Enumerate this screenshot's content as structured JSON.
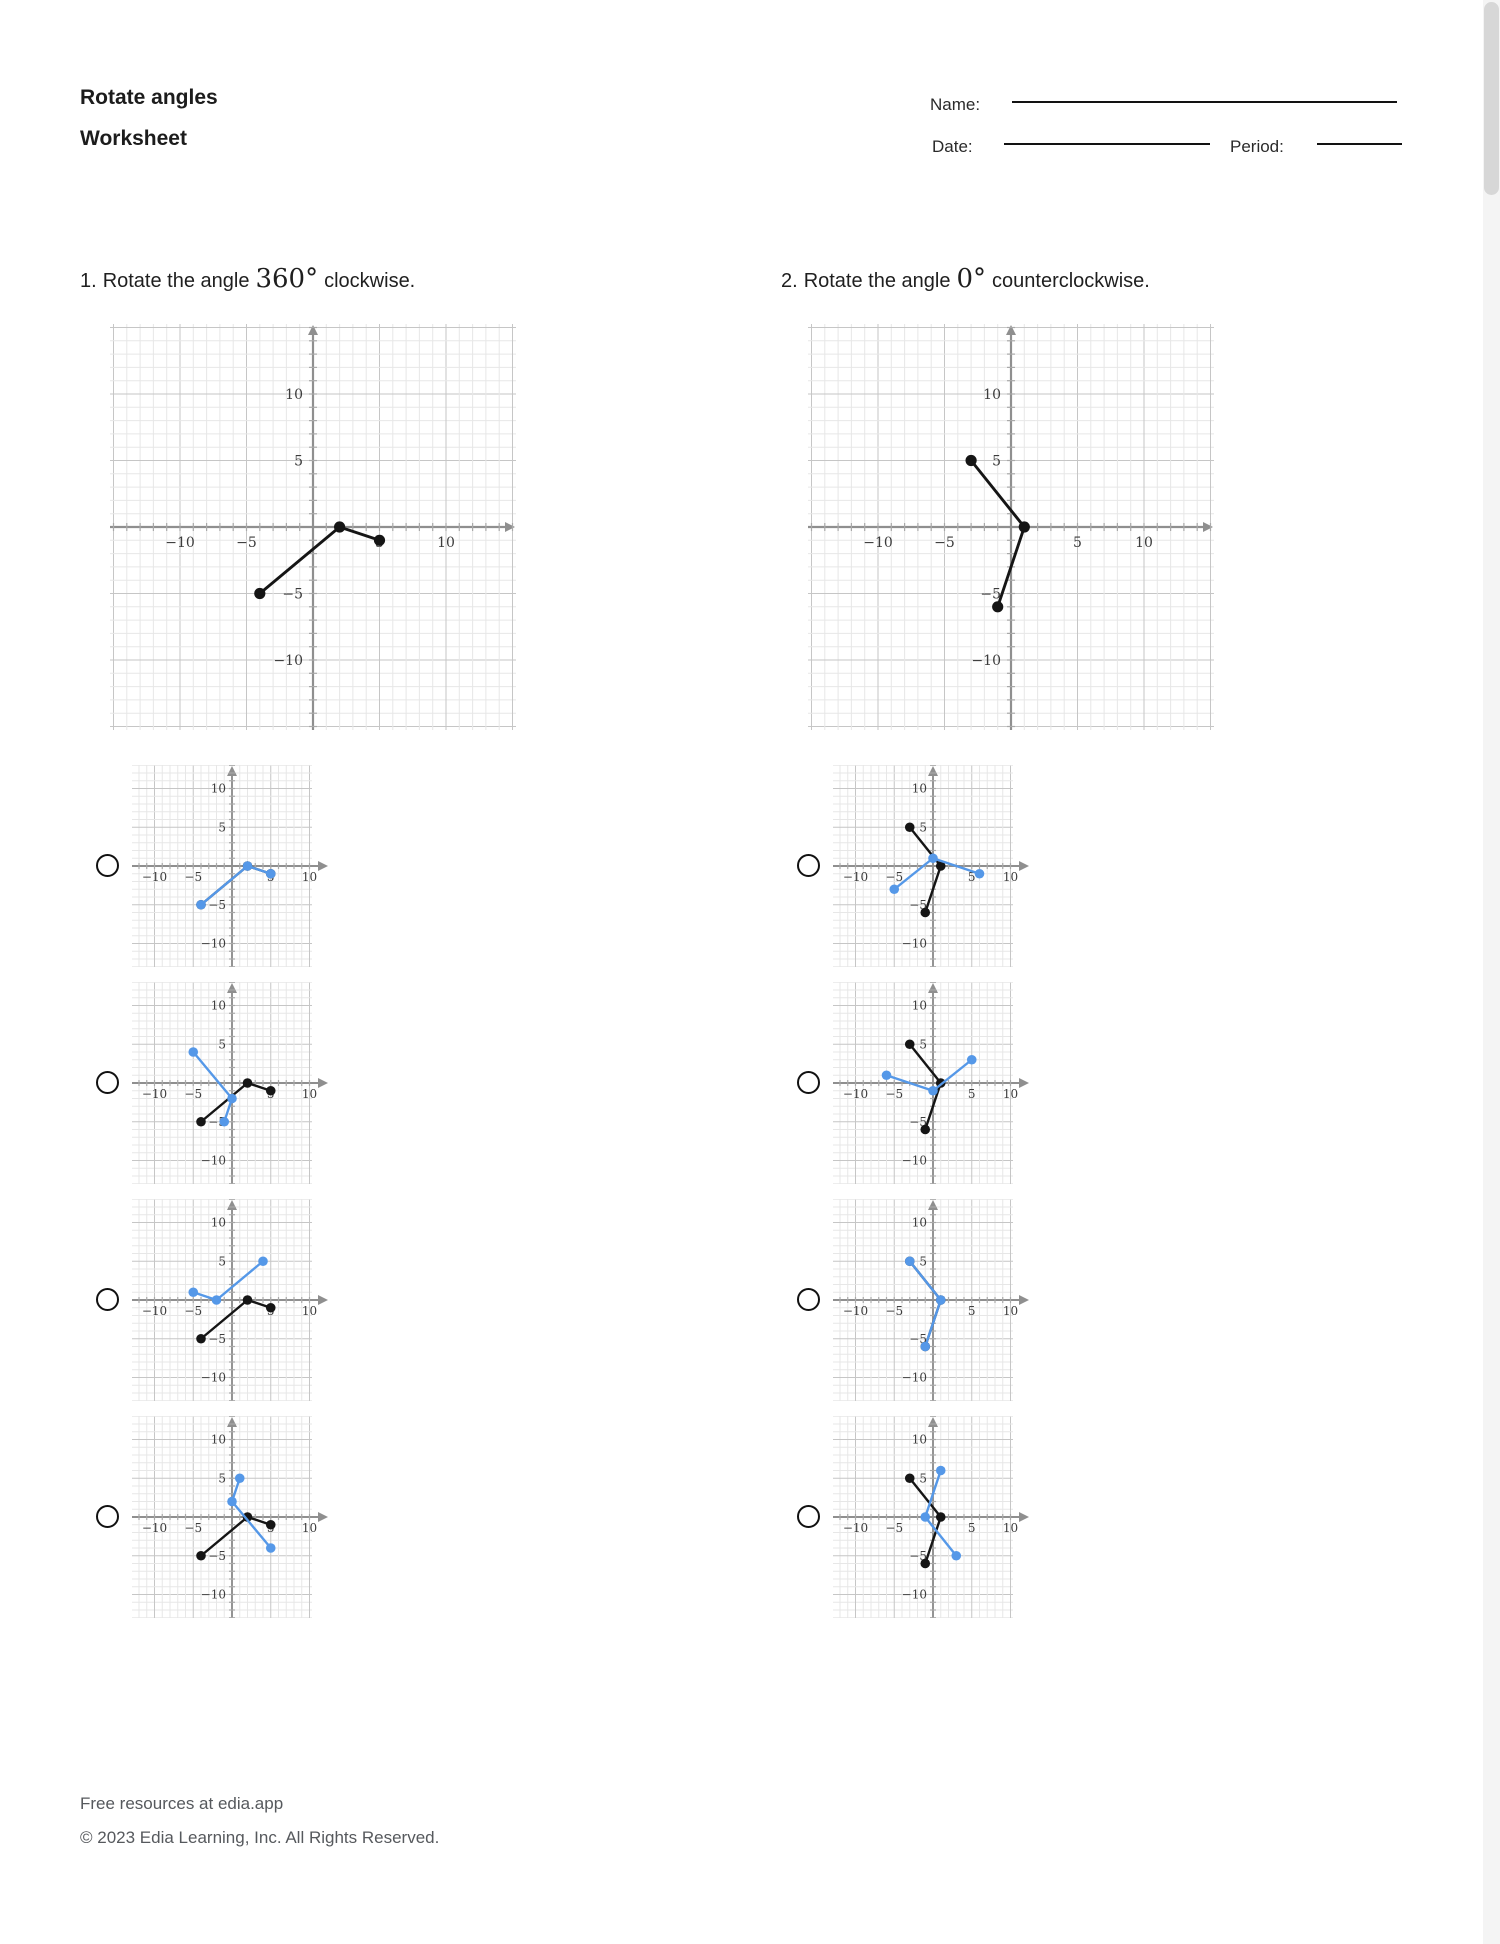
{
  "header": {
    "title_line1": "Rotate angles",
    "title_line2": "Worksheet",
    "name_label": "Name:",
    "date_label": "Date:",
    "period_label": "Period:"
  },
  "graph_axis": {
    "tick_labels": [
      -10,
      -5,
      5,
      10
    ]
  },
  "colors": {
    "blue": "#5598E8",
    "black": "#151515"
  },
  "questions": [
    {
      "number": "1.",
      "text_before": "Rotate the angle",
      "angle": "360°",
      "text_after": "clockwise.",
      "main_graph": {
        "black": {
          "vertex": [
            2,
            0
          ],
          "arms": [
            [
              -4,
              -5
            ],
            [
              5,
              -1
            ]
          ]
        },
        "blue": null
      },
      "options": [
        {
          "graph": {
            "black": {
              "vertex": [
                2,
                0
              ],
              "arms": [
                [
                  -4,
                  -5
                ],
                [
                  5,
                  -1
                ]
              ]
            },
            "blue": {
              "vertex": [
                2,
                0
              ],
              "arms": [
                [
                  -4,
                  -5
                ],
                [
                  5,
                  -1
                ]
              ]
            }
          }
        },
        {
          "graph": {
            "black": {
              "vertex": [
                2,
                0
              ],
              "arms": [
                [
                  -4,
                  -5
                ],
                [
                  5,
                  -1
                ]
              ]
            },
            "blue": {
              "vertex": [
                0,
                -2
              ],
              "arms": [
                [
                  -5,
                  4
                ],
                [
                  -1,
                  -5
                ]
              ]
            }
          }
        },
        {
          "graph": {
            "black": {
              "vertex": [
                2,
                0
              ],
              "arms": [
                [
                  -4,
                  -5
                ],
                [
                  5,
                  -1
                ]
              ]
            },
            "blue": {
              "vertex": [
                -2,
                0
              ],
              "arms": [
                [
                  4,
                  5
                ],
                [
                  -5,
                  1
                ]
              ]
            }
          }
        },
        {
          "graph": {
            "black": {
              "vertex": [
                2,
                0
              ],
              "arms": [
                [
                  -4,
                  -5
                ],
                [
                  5,
                  -1
                ]
              ]
            },
            "blue": {
              "vertex": [
                0,
                2
              ],
              "arms": [
                [
                  5,
                  -4
                ],
                [
                  1,
                  5
                ]
              ]
            }
          }
        }
      ]
    },
    {
      "number": "2.",
      "text_before": "Rotate the angle",
      "angle": "0°",
      "text_after": "counterclockwise.",
      "main_graph": {
        "black": {
          "vertex": [
            1,
            0
          ],
          "arms": [
            [
              -3,
              5
            ],
            [
              -1,
              -6
            ]
          ]
        },
        "blue": null
      },
      "options": [
        {
          "graph": {
            "black": {
              "vertex": [
                1,
                0
              ],
              "arms": [
                [
                  -3,
                  5
                ],
                [
                  -1,
                  -6
                ]
              ]
            },
            "blue": {
              "vertex": [
                0,
                1
              ],
              "arms": [
                [
                  -5,
                  -3
                ],
                [
                  6,
                  -1
                ]
              ]
            }
          }
        },
        {
          "graph": {
            "black": {
              "vertex": [
                1,
                0
              ],
              "arms": [
                [
                  -3,
                  5
                ],
                [
                  -1,
                  -6
                ]
              ]
            },
            "blue": {
              "vertex": [
                0,
                -1
              ],
              "arms": [
                [
                  5,
                  3
                ],
                [
                  -6,
                  1
                ]
              ]
            }
          }
        },
        {
          "graph": {
            "black": {
              "vertex": [
                1,
                0
              ],
              "arms": [
                [
                  -3,
                  5
                ],
                [
                  -1,
                  -6
                ]
              ]
            },
            "blue": {
              "vertex": [
                1,
                0
              ],
              "arms": [
                [
                  -3,
                  5
                ],
                [
                  -1,
                  -6
                ]
              ]
            }
          }
        },
        {
          "graph": {
            "black": {
              "vertex": [
                1,
                0
              ],
              "arms": [
                [
                  -3,
                  5
                ],
                [
                  -1,
                  -6
                ]
              ]
            },
            "blue": {
              "vertex": [
                -1,
                0
              ],
              "arms": [
                [
                  3,
                  -5
                ],
                [
                  1,
                  6
                ]
              ]
            }
          }
        }
      ]
    }
  ],
  "footer": {
    "line1": "Free resources at edia.app",
    "line2": "© 2023 Edia Learning, Inc. All Rights Reserved."
  }
}
